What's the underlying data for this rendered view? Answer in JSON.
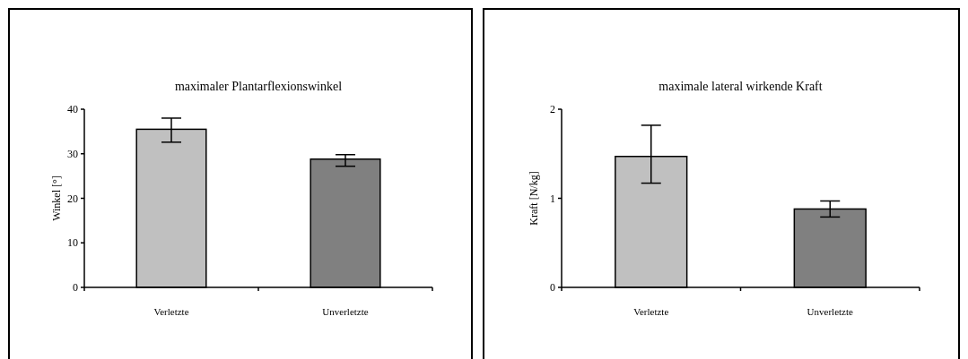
{
  "chart_data": [
    {
      "type": "bar",
      "title": "maximaler Plantarflexionswinkel",
      "ylabel": "Winkel [°]",
      "categories": [
        "Verletzte",
        "Unverletzte"
      ],
      "values": [
        35.5,
        28.8
      ],
      "colors": [
        "#c0c0c0",
        "#808080"
      ],
      "errors": [
        [
          32.6,
          38.0
        ],
        [
          27.2,
          29.8
        ]
      ],
      "ylim": [
        0,
        40
      ],
      "yticks": [
        0,
        10,
        20,
        30,
        40
      ],
      "grid": false
    },
    {
      "type": "bar",
      "title": "maximale lateral wirkende Kraft",
      "ylabel": "Kraft [N/kg]",
      "categories": [
        "Verletzte",
        "Unverletzte"
      ],
      "values": [
        1.47,
        0.88
      ],
      "colors": [
        "#c0c0c0",
        "#808080"
      ],
      "errors": [
        [
          1.17,
          1.82
        ],
        [
          0.79,
          0.97
        ]
      ],
      "ylim": [
        0,
        2
      ],
      "yticks": [
        0,
        1,
        2
      ],
      "grid": false
    }
  ]
}
